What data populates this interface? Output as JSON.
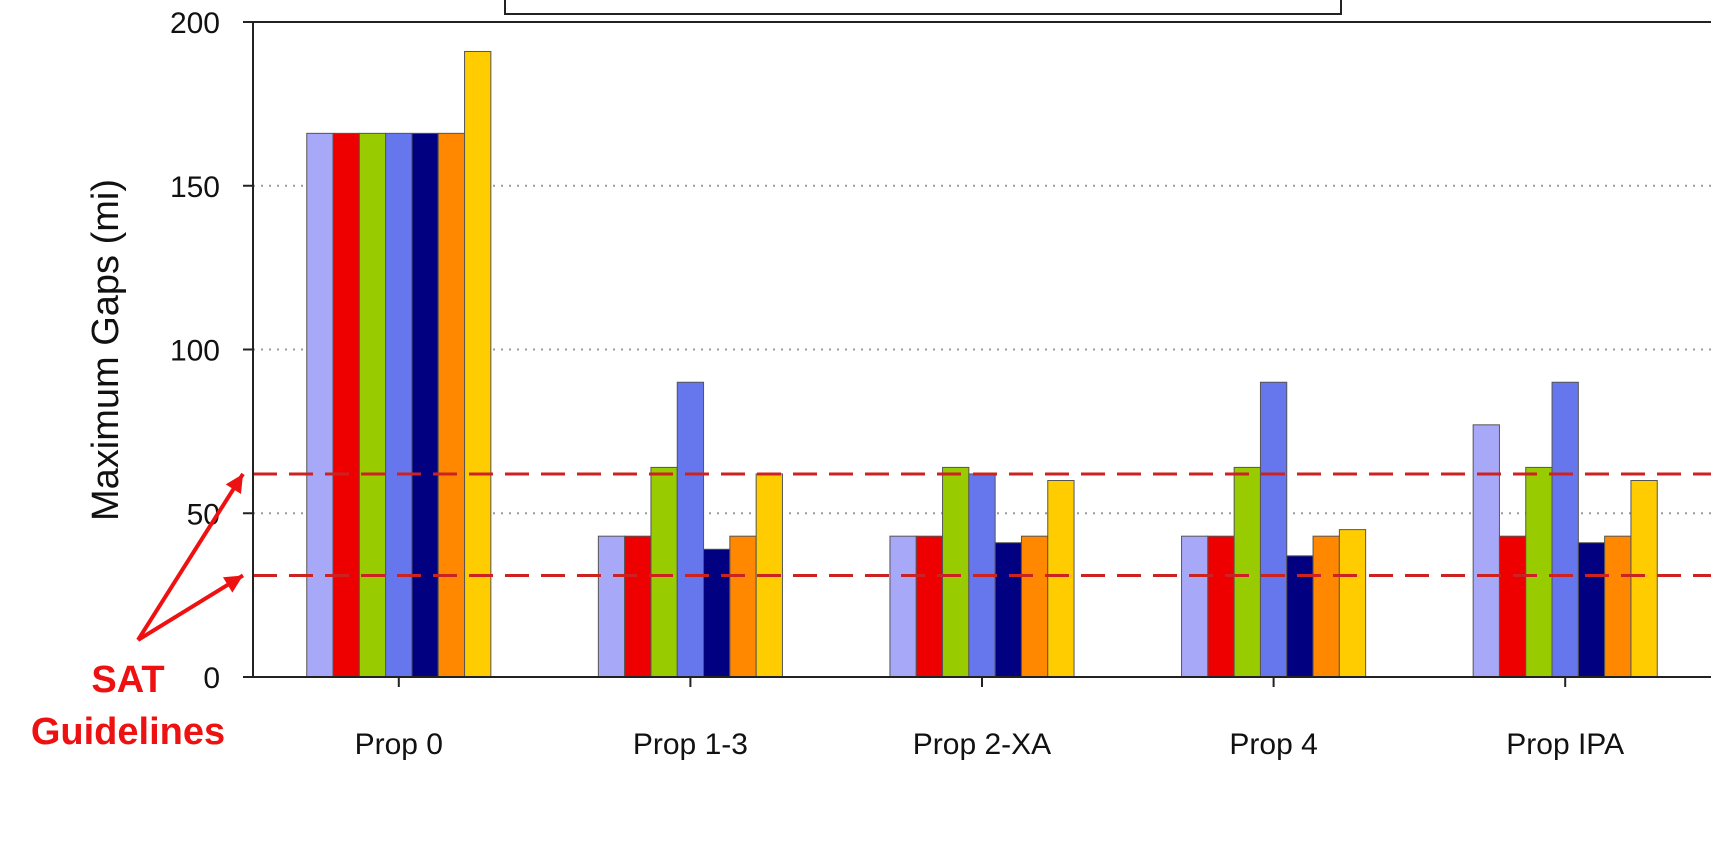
{
  "chart_data": {
    "type": "bar",
    "title": "",
    "xlabel": "",
    "ylabel": "Maximum Gaps (mi)",
    "ylim": [
      0,
      200
    ],
    "yticks": [
      0,
      50,
      100,
      150,
      200
    ],
    "grid": "horizontal dotted at 50, 100, 150",
    "legend": "boxed, top-center (entries not legible)",
    "categories": [
      "Prop 0",
      "Prop 1-3",
      "Prop 2-XA",
      "Prop 4",
      "Prop IPA"
    ],
    "series": [
      {
        "color": "#a8a8f8",
        "values": [
          166,
          43,
          43,
          43,
          77
        ]
      },
      {
        "color": "#ee0000",
        "values": [
          166,
          43,
          43,
          43,
          43
        ]
      },
      {
        "color": "#99cc00",
        "values": [
          166,
          64,
          64,
          64,
          64
        ]
      },
      {
        "color": "#6677ee",
        "values": [
          166,
          90,
          62,
          90,
          90
        ]
      },
      {
        "color": "#000080",
        "values": [
          166,
          39,
          41,
          37,
          41
        ]
      },
      {
        "color": "#ff8800",
        "values": [
          166,
          43,
          43,
          43,
          43
        ]
      },
      {
        "color": "#ffcc00",
        "values": [
          191,
          62,
          60,
          45,
          60
        ]
      }
    ],
    "reference_lines": [
      {
        "value": 62,
        "color": "#cc2222",
        "style": "dashed"
      },
      {
        "value": 31,
        "color": "#cc2222",
        "style": "dashed"
      }
    ],
    "annotation": {
      "lines": [
        "SAT",
        "Guidelines"
      ],
      "color": "#ee1111"
    }
  }
}
